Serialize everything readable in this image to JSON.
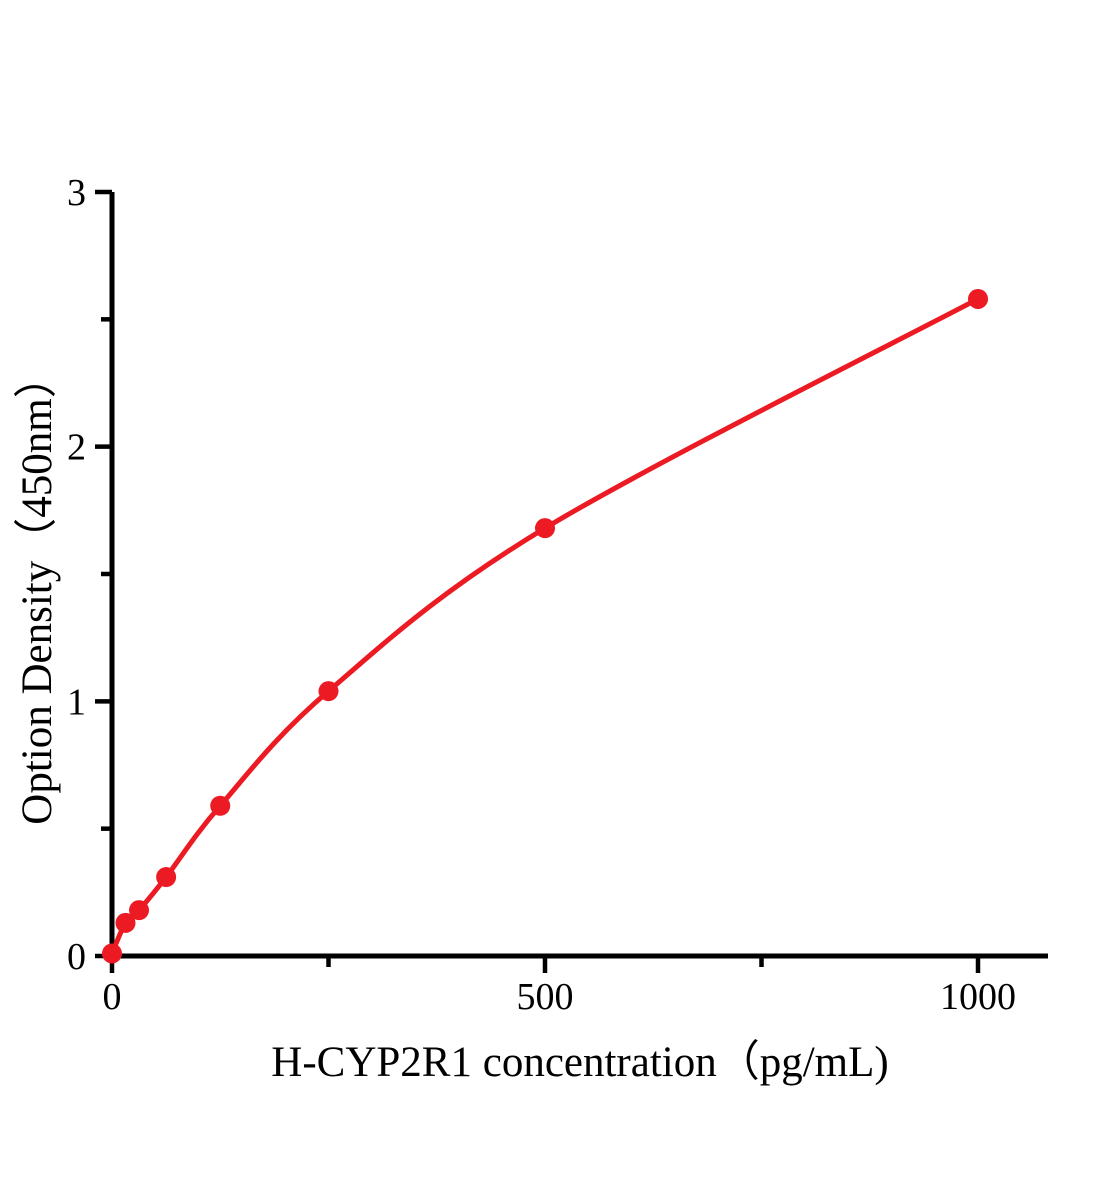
{
  "figure": {
    "background_color": "#ffffff",
    "axis_color": "#000000",
    "description": "ELISA standard curve, single red series of concentration vs optical density"
  },
  "chart_data": {
    "type": "line",
    "title": "",
    "xlabel": "H-CYP2R1 concentration（pg/mL)",
    "ylabel": "Option Density（450nm）",
    "x": [
      0,
      15.6,
      31.2,
      62.5,
      125,
      250,
      500,
      1000
    ],
    "y": [
      0.01,
      0.13,
      0.18,
      0.31,
      0.59,
      1.04,
      1.68,
      2.58
    ],
    "series_color": "#ec1b23",
    "marker": "filled-circle",
    "line_style": "smooth",
    "xlim": [
      0,
      1082
    ],
    "ylim": [
      0,
      3
    ],
    "x_ticks": {
      "major": [
        0,
        500,
        1000
      ],
      "minor": [
        250,
        750
      ]
    },
    "y_ticks": {
      "major": [
        0,
        1,
        2,
        3
      ],
      "minor": [
        0.5,
        1.5,
        2.5
      ]
    },
    "grid": false,
    "legend": null
  }
}
